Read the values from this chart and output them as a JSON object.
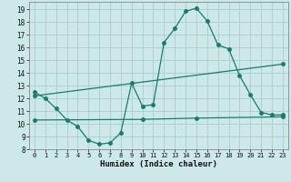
{
  "title": "",
  "xlabel": "Humidex (Indice chaleur)",
  "bg_color": "#cce8e8",
  "grid_color": "#aacccc",
  "line_color": "#1a7a6e",
  "xlim": [
    -0.5,
    23.5
  ],
  "ylim": [
    8,
    19.6
  ],
  "yticks": [
    8,
    9,
    10,
    11,
    12,
    13,
    14,
    15,
    16,
    17,
    18,
    19
  ],
  "xticks": [
    0,
    1,
    2,
    3,
    4,
    5,
    6,
    7,
    8,
    9,
    10,
    11,
    12,
    13,
    14,
    15,
    16,
    17,
    18,
    19,
    20,
    21,
    22,
    23
  ],
  "curve1_x": [
    0,
    1,
    2,
    3,
    4,
    5,
    6,
    7,
    8,
    9,
    10,
    11,
    12,
    13,
    14,
    15,
    16,
    17,
    18,
    19,
    20,
    21,
    22,
    23
  ],
  "curve1_y": [
    12.5,
    12.0,
    11.2,
    10.3,
    9.8,
    8.7,
    8.4,
    8.5,
    9.3,
    13.2,
    11.4,
    11.5,
    16.4,
    17.5,
    18.85,
    19.1,
    18.1,
    16.2,
    15.9,
    13.8,
    12.3,
    10.9,
    10.7,
    10.7
  ],
  "curve2_x": [
    0,
    23
  ],
  "curve2_y": [
    12.2,
    14.7
  ],
  "curve3_x": [
    0,
    10,
    15,
    23
  ],
  "curve3_y": [
    10.3,
    10.35,
    10.45,
    10.55
  ],
  "marker_size": 2.5
}
